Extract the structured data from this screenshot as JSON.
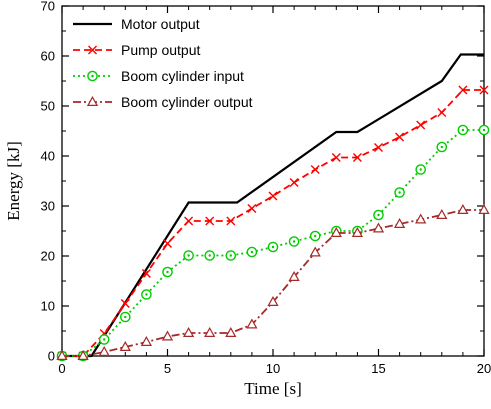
{
  "chart_data": {
    "type": "line",
    "xlabel": "Time [s]",
    "ylabel": "Energy [kJ]",
    "xlim": [
      0,
      20
    ],
    "ylim": [
      0,
      70
    ],
    "xticks": [
      0,
      5,
      10,
      15,
      20
    ],
    "yticks": [
      0,
      10,
      20,
      30,
      40,
      50,
      60,
      70
    ],
    "grid": false,
    "legend_position": "top-left",
    "series": [
      {
        "name": "Motor output",
        "color": "#000000",
        "dash": "solid",
        "marker": "none",
        "x": [
          0,
          1,
          1.4,
          6,
          8.3,
          13,
          14,
          18,
          18.9,
          20
        ],
        "y": [
          0,
          0,
          0,
          30.7,
          30.7,
          44.8,
          44.8,
          55,
          60.3,
          60.3
        ]
      },
      {
        "name": "Pump output",
        "color": "#ff0000",
        "dash": "dash",
        "marker": "x",
        "x": [
          0,
          1,
          2,
          3,
          4,
          5,
          6,
          7,
          8,
          9,
          10,
          11,
          12,
          13,
          14,
          15,
          16,
          17,
          18,
          19,
          20
        ],
        "y": [
          0,
          0,
          4.5,
          10.5,
          16.5,
          22.5,
          27,
          27,
          27,
          29.5,
          32,
          34.7,
          37.3,
          39.7,
          39.7,
          41.7,
          43.8,
          46.2,
          48.7,
          53.2,
          53.2
        ]
      },
      {
        "name": "Boom cylinder input",
        "color": "#00cc00",
        "dash": "dot",
        "marker": "circle-dot",
        "x": [
          0,
          1,
          2,
          3,
          4,
          5,
          6,
          7,
          8,
          9,
          10,
          11,
          12,
          13,
          14,
          15,
          16,
          17,
          18,
          19,
          20
        ],
        "y": [
          0,
          0,
          3.3,
          7.8,
          12.3,
          16.8,
          20.1,
          20.1,
          20.1,
          20.8,
          21.8,
          22.9,
          24,
          25,
          25,
          28.2,
          32.7,
          37.3,
          41.8,
          45.2,
          45.2
        ]
      },
      {
        "name": "Boom cylinder output",
        "color": "#a52a2a",
        "dash": "dashdot",
        "marker": "triangle",
        "x": [
          0,
          1,
          2,
          3,
          4,
          5,
          6,
          7,
          8,
          9,
          10,
          11,
          12,
          13,
          14,
          15,
          16,
          17,
          18,
          19,
          20
        ],
        "y": [
          0,
          0,
          0.8,
          1.8,
          2.8,
          3.9,
          4.6,
          4.6,
          4.6,
          6.3,
          10.8,
          15.8,
          20.7,
          24.6,
          24.6,
          25.5,
          26.4,
          27.3,
          28.2,
          29.2,
          29.2
        ]
      }
    ]
  }
}
